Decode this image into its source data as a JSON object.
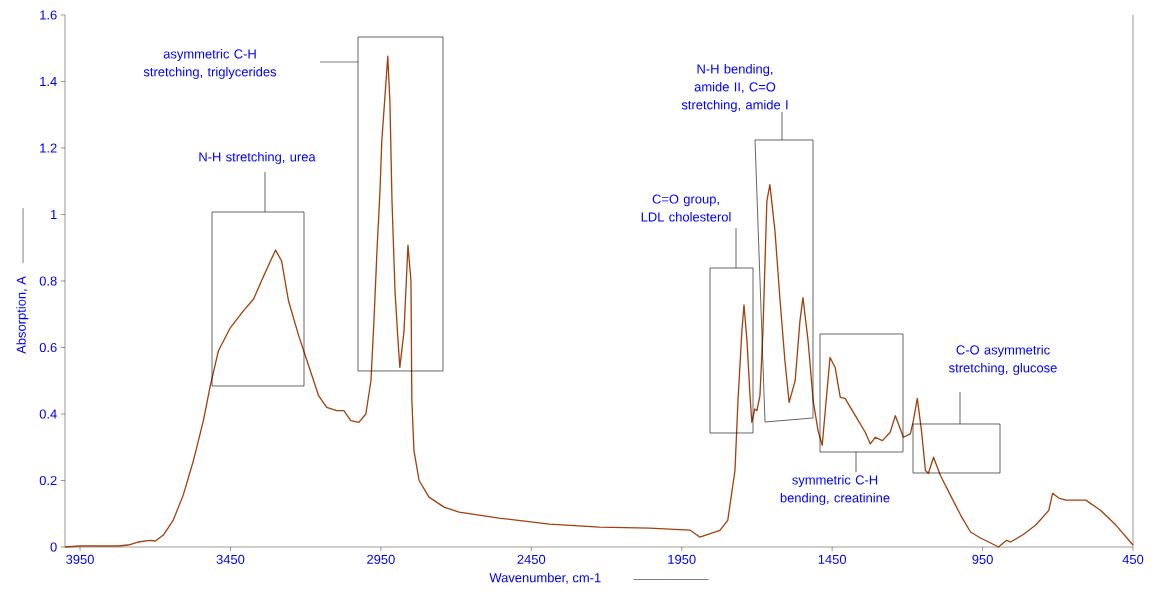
{
  "chart_data": {
    "type": "line",
    "xlabel": "Wavenumber, cm-1",
    "ylabel": "Absorption, A",
    "x": [
      4000,
      3950,
      3823,
      3790,
      3757,
      3717,
      3700,
      3673,
      3640,
      3607,
      3573,
      3540,
      3517,
      3490,
      3450,
      3407,
      3373,
      3347,
      3317,
      3300,
      3280,
      3257,
      3223,
      3190,
      3157,
      3130,
      3097,
      3073,
      3050,
      3023,
      3000,
      2983,
      2973,
      2963,
      2953,
      2947,
      2927,
      2920,
      2913,
      2903,
      2893,
      2887,
      2873,
      2860,
      2850,
      2847,
      2840,
      2823,
      2790,
      2740,
      2690,
      2557,
      2390,
      2223,
      2057,
      1923,
      1890,
      1823,
      1797,
      1773,
      1763,
      1750,
      1743,
      1733,
      1723,
      1717,
      1707,
      1700,
      1690,
      1680,
      1667,
      1657,
      1640,
      1623,
      1607,
      1593,
      1573,
      1557,
      1547,
      1530,
      1513,
      1497,
      1483,
      1470,
      1457,
      1440,
      1423,
      1407,
      1373,
      1340,
      1323,
      1307,
      1283,
      1257,
      1240,
      1213,
      1190,
      1180,
      1167,
      1153,
      1140,
      1130,
      1113,
      1090,
      1057,
      1023,
      990,
      957,
      923,
      897,
      870,
      857,
      817,
      773,
      730,
      717,
      697,
      673,
      607,
      557,
      507,
      450
    ],
    "series": [
      {
        "color": "#a0400c",
        "values": [
          0,
          0.003,
          0.003,
          0.006,
          0.015,
          0.02,
          0.018,
          0.036,
          0.081,
          0.156,
          0.26,
          0.38,
          0.485,
          0.59,
          0.66,
          0.71,
          0.746,
          0.8,
          0.86,
          0.893,
          0.86,
          0.74,
          0.635,
          0.545,
          0.455,
          0.42,
          0.41,
          0.41,
          0.38,
          0.375,
          0.4,
          0.5,
          0.68,
          0.89,
          1.07,
          1.22,
          1.476,
          1.34,
          1.04,
          0.77,
          0.62,
          0.54,
          0.65,
          0.908,
          0.8,
          0.44,
          0.29,
          0.2,
          0.15,
          0.12,
          0.105,
          0.087,
          0.069,
          0.06,
          0.057,
          0.051,
          0.03,
          0.05,
          0.08,
          0.23,
          0.44,
          0.65,
          0.728,
          0.62,
          0.455,
          0.375,
          0.415,
          0.41,
          0.455,
          0.65,
          1.04,
          1.09,
          0.95,
          0.74,
          0.56,
          0.435,
          0.5,
          0.68,
          0.75,
          0.62,
          0.44,
          0.35,
          0.306,
          0.44,
          0.57,
          0.54,
          0.45,
          0.447,
          0.395,
          0.345,
          0.31,
          0.33,
          0.32,
          0.345,
          0.395,
          0.33,
          0.34,
          0.38,
          0.447,
          0.35,
          0.23,
          0.222,
          0.27,
          0.215,
          0.156,
          0.096,
          0.045,
          0.027,
          0.012,
          0,
          0.02,
          0.015,
          0.036,
          0.066,
          0.11,
          0.162,
          0.147,
          0.141,
          0.141,
          0.11,
          0.066,
          0.006
        ]
      }
    ],
    "xlim": [
      4000,
      450
    ],
    "xticks": [
      3950,
      3450,
      2950,
      2450,
      1950,
      1450,
      950,
      450
    ],
    "ylim": [
      0,
      1.6
    ],
    "yticks": [
      0,
      0.2,
      0.4,
      0.6,
      0.8,
      1,
      1.2,
      1.4,
      1.6
    ],
    "marker": "none",
    "line_style": "solid",
    "annotations": [
      "N-H stretching, urea",
      "asymmetric C-H stretching, triglycerides",
      "C=O group, LDL cholesterol",
      "N-H bending, amide II, C=O stretching, amide I",
      "symmetric C-H bending, creatinine",
      "C-O asymmetric stretching, glucose"
    ]
  }
}
